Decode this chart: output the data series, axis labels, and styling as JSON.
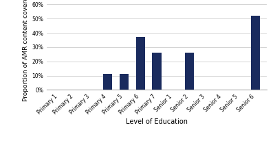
{
  "categories": [
    "Primary 1",
    "Primary 2",
    "Primary 3",
    "Primary 4",
    "Primary 5",
    "Primary 6",
    "Primary 7",
    "Senior 1",
    "Senior 2",
    "Senior 3",
    "Senior 4",
    "Senior 5",
    "Senior 6"
  ],
  "values": [
    0,
    0,
    0,
    0.114,
    0.114,
    0.37,
    0.26,
    0,
    0.26,
    0,
    0,
    0,
    0.521
  ],
  "bar_color": "#1a2b5e",
  "xlabel": "Level of Education",
  "ylabel": "Proportion of AMR content covered",
  "ylim": [
    0,
    0.6
  ],
  "yticks": [
    0.0,
    0.1,
    0.2,
    0.3,
    0.4,
    0.5,
    0.6
  ],
  "background_color": "#ffffff",
  "grid_color": "#cccccc",
  "xlabel_fontsize": 7,
  "ylabel_fontsize": 6.5,
  "tick_fontsize": 5.5,
  "bar_width": 0.55
}
